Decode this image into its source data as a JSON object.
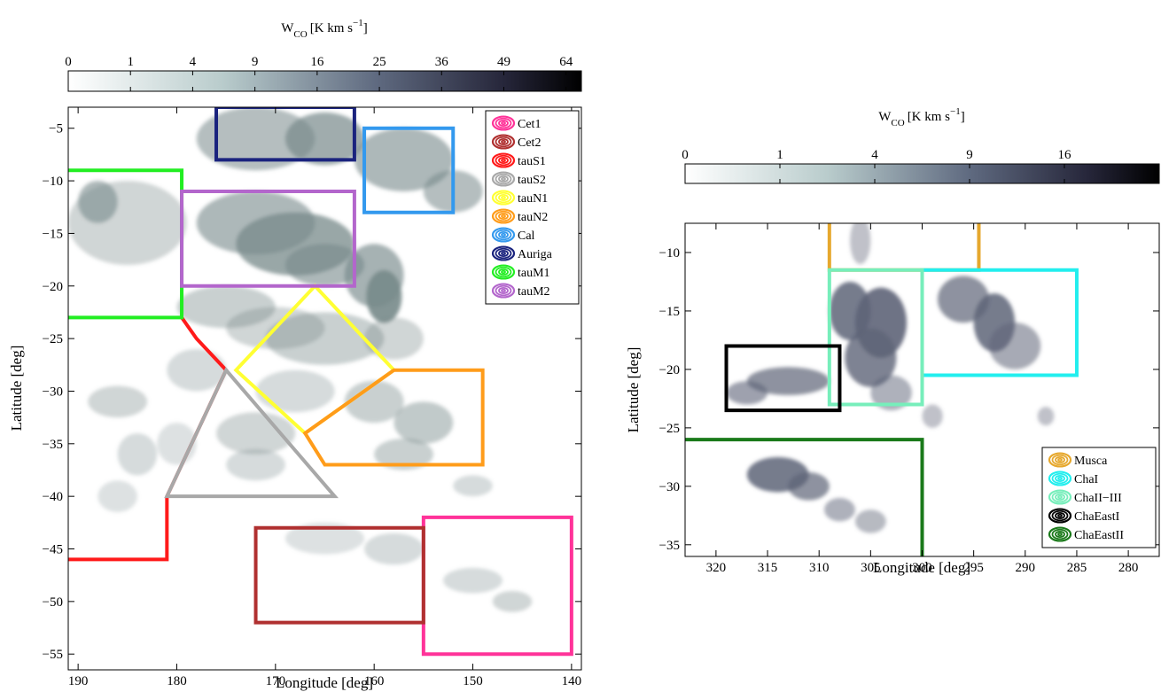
{
  "chart_data": [
    {
      "type": "map",
      "colorbar": {
        "label": "W",
        "label_sub": "CO",
        "label_units": "[K km s",
        "label_exp": "−1",
        "label_end": "]",
        "ticks": [
          "0",
          "1",
          "4",
          "9",
          "16",
          "25",
          "36",
          "49",
          "64"
        ],
        "tick_values": [
          0,
          1,
          4,
          9,
          16,
          25,
          36,
          49,
          64
        ],
        "max": 68,
        "scale": "sqrt"
      },
      "xlabel": "Longitude [deg]",
      "ylabel": "Latitude [deg]",
      "xlim": [
        191,
        139
      ],
      "ylim": [
        -56.5,
        -3
      ],
      "xticks": [
        190,
        180,
        170,
        160,
        150,
        140
      ],
      "xtick_labels": [
        "190",
        "180",
        "170",
        "160",
        "150",
        "140"
      ],
      "yticks": [
        -5,
        -10,
        -15,
        -20,
        -25,
        -30,
        -35,
        -40,
        -45,
        -50,
        -55
      ],
      "ytick_labels": [
        "−5",
        "−10",
        "−15",
        "−20",
        "−25",
        "−30",
        "−35",
        "−40",
        "−45",
        "−50",
        "−55"
      ],
      "legend_position": "top-right",
      "regions": [
        {
          "name": "Cet1",
          "color": "#ff3399",
          "shape": "polygon",
          "points": [
            [
              155,
              -42
            ],
            [
              140,
              -42
            ],
            [
              140,
              -55
            ],
            [
              155,
              -55
            ]
          ]
        },
        {
          "name": "Cet2",
          "color": "#b03030",
          "shape": "polygon",
          "points": [
            [
              172,
              -43
            ],
            [
              155,
              -43
            ],
            [
              155,
              -52
            ],
            [
              172,
              -52
            ]
          ]
        },
        {
          "name": "tauS1",
          "color": "#ff1a1a",
          "shape": "polyline",
          "points": [
            [
              179.5,
              -23
            ],
            [
              178,
              -25
            ],
            [
              175,
              -28
            ],
            [
              181,
              -40
            ],
            [
              181,
              -46
            ],
            [
              191,
              -46
            ]
          ]
        },
        {
          "name": "tauS2",
          "color": "#a8a8a8",
          "shape": "polygon",
          "points": [
            [
              175,
              -28
            ],
            [
              164,
              -40
            ],
            [
              181,
              -40
            ]
          ]
        },
        {
          "name": "tauN1",
          "color": "#ffff33",
          "shape": "polygon",
          "points": [
            [
              166,
              -20
            ],
            [
              158,
              -28
            ],
            [
              167,
              -34
            ],
            [
              174,
              -28
            ]
          ]
        },
        {
          "name": "tauN2",
          "color": "#ff9c1a",
          "shape": "polygon",
          "points": [
            [
              158,
              -28
            ],
            [
              149,
              -28
            ],
            [
              149,
              -37
            ],
            [
              165,
              -37
            ],
            [
              167,
              -34
            ]
          ]
        },
        {
          "name": "Cal",
          "color": "#3399ee",
          "shape": "polygon",
          "points": [
            [
              161,
              -5
            ],
            [
              152,
              -5
            ],
            [
              152,
              -13
            ],
            [
              161,
              -13
            ]
          ]
        },
        {
          "name": "Auriga",
          "color": "#1a237e",
          "shape": "polygon",
          "points": [
            [
              176,
              -3
            ],
            [
              162,
              -3
            ],
            [
              162,
              -8
            ],
            [
              176,
              -8
            ]
          ]
        },
        {
          "name": "tauM1",
          "color": "#22ee22",
          "shape": "polyline",
          "points": [
            [
              191,
              -9
            ],
            [
              179.5,
              -9
            ],
            [
              179.5,
              -23
            ],
            [
              191,
              -23
            ]
          ]
        },
        {
          "name": "tauM2",
          "color": "#b366cc",
          "shape": "polygon",
          "points": [
            [
              179.5,
              -11
            ],
            [
              162,
              -11
            ],
            [
              162,
              -20
            ],
            [
              179.5,
              -20
            ]
          ]
        }
      ]
    },
    {
      "type": "map",
      "colorbar": {
        "label": "W",
        "label_sub": "CO",
        "label_units": "[K km s",
        "label_exp": "−1",
        "label_end": "]",
        "ticks": [
          "0",
          "1",
          "4",
          "9",
          "16"
        ],
        "tick_values": [
          0,
          1,
          4,
          9,
          16
        ],
        "max": 25,
        "scale": "sqrt"
      },
      "xlabel": "Longitude [deg]",
      "ylabel": "Latitude [deg]",
      "xlim": [
        323,
        277
      ],
      "ylim": [
        -36,
        -7.5
      ],
      "xticks": [
        320,
        315,
        310,
        305,
        300,
        295,
        290,
        285,
        280
      ],
      "xtick_labels": [
        "320",
        "315",
        "310",
        "305",
        "300",
        "295",
        "290",
        "285",
        "280"
      ],
      "yticks": [
        -10,
        -15,
        -20,
        -25,
        -30,
        -35
      ],
      "ytick_labels": [
        "−10",
        "−15",
        "−20",
        "−25",
        "−30",
        "−35"
      ],
      "legend_position": "bottom-right",
      "regions": [
        {
          "name": "Musca",
          "color": "#e6a82e",
          "shape": "polyline",
          "points": [
            [
              309,
              -7.5
            ],
            [
              309,
              -11.5
            ],
            [
              294.5,
              -11.5
            ],
            [
              294.5,
              -7.5
            ]
          ]
        },
        {
          "name": "ChaI",
          "color": "#22eeee",
          "shape": "polygon",
          "points": [
            [
              300,
              -11.5
            ],
            [
              285,
              -11.5
            ],
            [
              285,
              -20.5
            ],
            [
              300,
              -20.5
            ]
          ]
        },
        {
          "name": "ChaII−III",
          "color": "#77eebb",
          "shape": "polygon",
          "points": [
            [
              309,
              -11.5
            ],
            [
              300,
              -11.5
            ],
            [
              300,
              -23
            ],
            [
              309,
              -23
            ]
          ]
        },
        {
          "name": "ChaEastI",
          "color": "#000000",
          "shape": "polygon",
          "points": [
            [
              319,
              -18
            ],
            [
              308,
              -18
            ],
            [
              308,
              -23.5
            ],
            [
              319,
              -23.5
            ]
          ]
        },
        {
          "name": "ChaEastII",
          "color": "#1a7a1a",
          "shape": "polyline",
          "points": [
            [
              323,
              -26
            ],
            [
              300,
              -26
            ],
            [
              300,
              -36
            ]
          ]
        }
      ]
    }
  ]
}
